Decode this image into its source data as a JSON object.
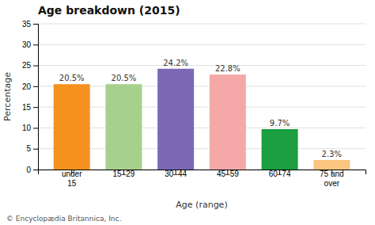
{
  "chart_data": {
    "type": "bar",
    "title": "Age breakdown (2015)",
    "categories": [
      "under\n15",
      "15–29",
      "30–44",
      "45–59",
      "60–74",
      "75 and\nover"
    ],
    "values": [
      20.5,
      20.5,
      24.2,
      22.8,
      9.7,
      2.3
    ],
    "value_labels": [
      "20.5%",
      "20.5%",
      "24.2%",
      "22.8%",
      "9.7%",
      "2.3%"
    ],
    "data_labels": true,
    "colors": [
      "#f5921e",
      "#a8d08d",
      "#7b68b5",
      "#f4a9a8",
      "#1a9e3f",
      "#f9c580"
    ],
    "xlabel": "Age (range)",
    "ylabel": "Percentage",
    "ylim": [
      0,
      35
    ],
    "yticks": [
      0,
      5,
      10,
      15,
      20,
      25,
      30,
      35
    ],
    "grid": true,
    "footnote": "© Encyclopædia Britannica, Inc."
  }
}
